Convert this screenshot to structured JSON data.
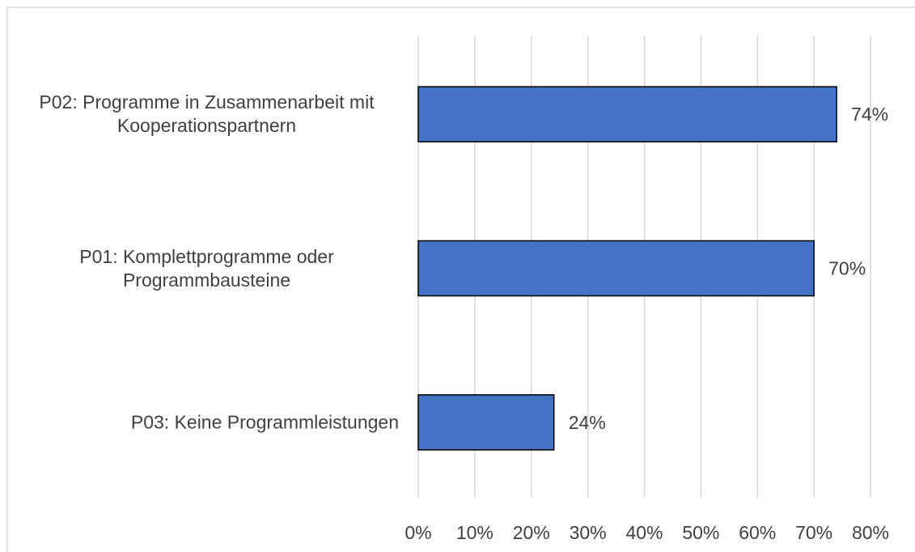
{
  "chart_data": {
    "type": "bar",
    "orientation": "horizontal",
    "categories": [
      "P02: Programme in Zusammenarbeit mit Kooperationspartnern",
      "P01: Komplettprogramme oder Programmbausteine",
      "P03: Keine Programmleistungen"
    ],
    "values": [
      74,
      70,
      24
    ],
    "value_labels": [
      "74%",
      "70%",
      "24%"
    ],
    "color": "#4472c4",
    "xlim": [
      0,
      80
    ],
    "xticks": [
      {
        "value": 0,
        "label": "0%"
      },
      {
        "value": 10,
        "label": "10%"
      },
      {
        "value": 20,
        "label": "20%"
      },
      {
        "value": 30,
        "label": "30%"
      },
      {
        "value": 40,
        "label": "40%"
      },
      {
        "value": 50,
        "label": "50%"
      },
      {
        "value": 60,
        "label": "60%"
      },
      {
        "value": 70,
        "label": "70%"
      },
      {
        "value": 80,
        "label": "80%"
      }
    ],
    "grid": true
  }
}
